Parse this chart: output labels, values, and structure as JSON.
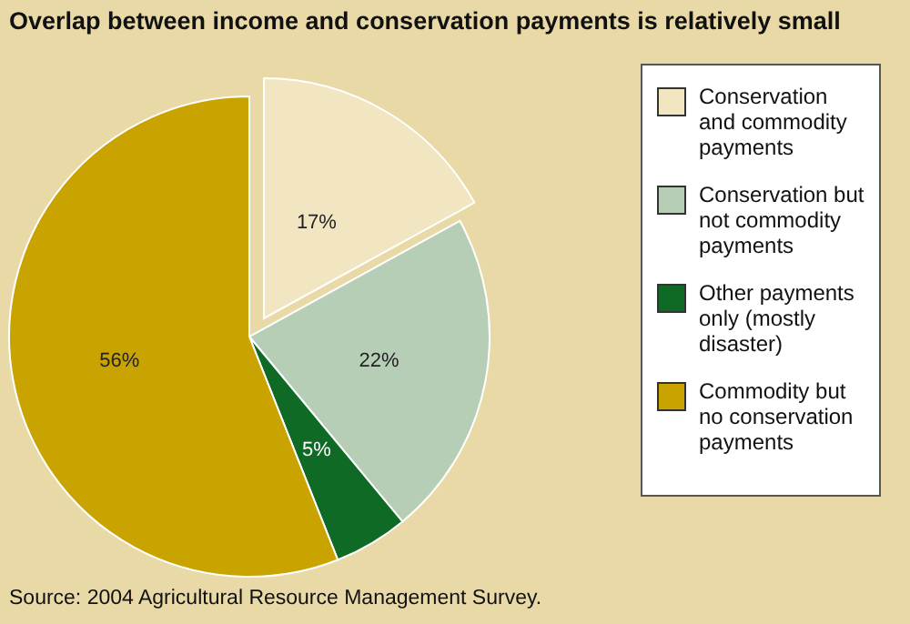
{
  "chart_data": {
    "type": "pie",
    "title": "Overlap between income and conservation payments is relatively small",
    "categories": [
      "Conservation and commodity payments",
      "Conservation but not commodity payments",
      "Other payments only (mostly disaster)",
      "Commodity but no conservation payments"
    ],
    "values": [
      17,
      22,
      5,
      56
    ],
    "colors": [
      "#f2e6c2",
      "#b6cdb6",
      "#0f6a25",
      "#c9a300"
    ],
    "value_labels": [
      "17%",
      "22%",
      "5%",
      "56%"
    ],
    "legend": "right",
    "annotations": [
      "Source:  2004 Agricultural Resource Management Survey."
    ]
  }
}
